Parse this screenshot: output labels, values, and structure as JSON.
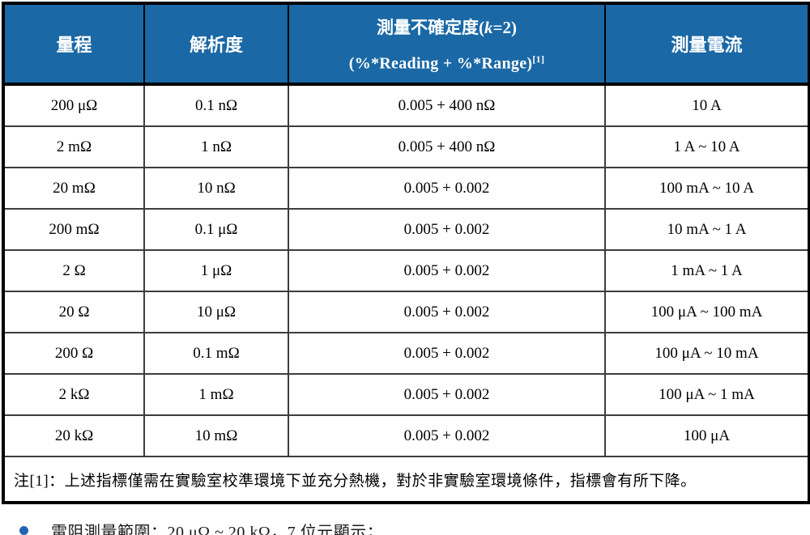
{
  "colors": {
    "header_bg": "#1A68A5",
    "header_text": "#FFFFFF",
    "bullet": "#2065B5",
    "border": "#000000"
  },
  "table": {
    "headers": {
      "range": "量程",
      "resolution": "解析度",
      "uncertainty_prefix": "測量不確定度(",
      "uncertainty_k": "k",
      "uncertainty_suffix": "=2)",
      "uncertainty_formula": "(%*Reading + %*Range)",
      "uncertainty_formula_sup": "[1]",
      "current": "測量電流"
    },
    "rows": [
      [
        "200 μΩ",
        "0.1 nΩ",
        "0.005 + 400 nΩ",
        "10 A"
      ],
      [
        "2 mΩ",
        "1 nΩ",
        "0.005 + 400 nΩ",
        "1 A ~ 10 A"
      ],
      [
        "20 mΩ",
        "10 nΩ",
        "0.005 + 0.002",
        "100 mA ~ 10 A"
      ],
      [
        "200 mΩ",
        "0.1 μΩ",
        "0.005 + 0.002",
        "10 mA ~ 1 A"
      ],
      [
        "2 Ω",
        "1 μΩ",
        "0.005 + 0.002",
        "1 mA ~ 1 A"
      ],
      [
        "20 Ω",
        "10 μΩ",
        "0.005 + 0.002",
        "100 μA ~ 100 mA"
      ],
      [
        "200 Ω",
        "0.1 mΩ",
        "0.005 + 0.002",
        "100 μA ~ 10 mA"
      ],
      [
        "2 kΩ",
        "1 mΩ",
        "0.005 + 0.002",
        "100 μA ~ 1 mA"
      ],
      [
        "20 kΩ",
        "10 mΩ",
        "0.005 + 0.002",
        "100 μA"
      ]
    ],
    "footnote": "注[1]：上述指標僅需在實驗室校準環境下並充分熱機，對於非實驗室環境條件，指標會有所下降。"
  },
  "bullet_note": {
    "text": "電阻測量範圍：20 μΩ ~ 20 kΩ，7 位元顯示；"
  }
}
